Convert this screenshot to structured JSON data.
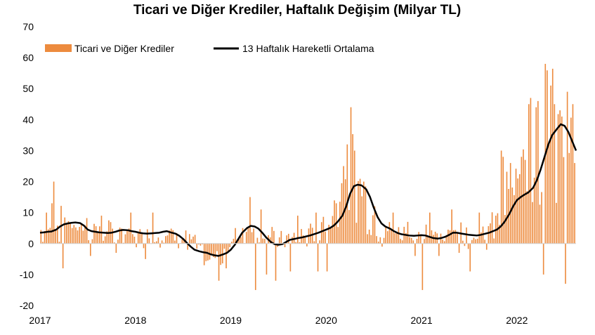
{
  "chart_data": {
    "type": "bar+line",
    "title": "Ticari ve Diğer Krediler, Haftalık Değişim (Milyar TL)",
    "xlabel": "",
    "ylabel": "",
    "ylim": [
      -20,
      70
    ],
    "yticks": [
      -20,
      -10,
      0,
      10,
      20,
      30,
      40,
      50,
      60,
      70
    ],
    "xlim": [
      2017,
      2022.62
    ],
    "xticks": [
      2017,
      2018,
      2019,
      2020,
      2021,
      2022
    ],
    "xtick_labels": [
      "2017",
      "2018",
      "2019",
      "2020",
      "2021",
      "2022"
    ],
    "grid": false,
    "legend_position": "top-left",
    "colors": {
      "bar": "#ed8b3e",
      "line": "#000000"
    },
    "series": [
      {
        "name": "Ticari ve Diğer Krediler",
        "kind": "bar",
        "anchors": [
          [
            2017.0,
            4
          ],
          [
            2017.15,
            5
          ],
          [
            2017.3,
            7
          ],
          [
            2017.45,
            6
          ],
          [
            2017.6,
            4
          ],
          [
            2017.75,
            3
          ],
          [
            2017.9,
            3
          ],
          [
            2018.05,
            2
          ],
          [
            2018.2,
            3
          ],
          [
            2018.35,
            3
          ],
          [
            2018.5,
            2
          ],
          [
            2018.6,
            1
          ],
          [
            2018.7,
            -3
          ],
          [
            2018.8,
            -4
          ],
          [
            2018.9,
            -4
          ],
          [
            2019.0,
            -1
          ],
          [
            2019.1,
            3
          ],
          [
            2019.18,
            6
          ],
          [
            2019.28,
            4
          ],
          [
            2019.4,
            2
          ],
          [
            2019.55,
            1
          ],
          [
            2019.7,
            2
          ],
          [
            2019.85,
            3
          ],
          [
            2019.95,
            5
          ],
          [
            2020.05,
            8
          ],
          [
            2020.15,
            18
          ],
          [
            2020.25,
            25
          ],
          [
            2020.35,
            19
          ],
          [
            2020.45,
            11
          ],
          [
            2020.55,
            6
          ],
          [
            2020.65,
            4
          ],
          [
            2020.8,
            3
          ],
          [
            2020.95,
            4
          ],
          [
            2021.1,
            2
          ],
          [
            2021.2,
            3
          ],
          [
            2021.3,
            5
          ],
          [
            2021.45,
            3
          ],
          [
            2021.55,
            3
          ],
          [
            2021.65,
            3
          ],
          [
            2021.75,
            5
          ],
          [
            2021.82,
            9
          ],
          [
            2021.88,
            14
          ],
          [
            2021.95,
            15
          ],
          [
            2022.02,
            17
          ],
          [
            2022.1,
            22
          ],
          [
            2022.18,
            30
          ],
          [
            2022.26,
            34
          ],
          [
            2022.34,
            38
          ],
          [
            2022.42,
            35
          ],
          [
            2022.5,
            33
          ],
          [
            2022.58,
            30
          ],
          [
            2022.62,
            28
          ]
        ],
        "spikes": [
          [
            2017.06,
            10
          ],
          [
            2017.12,
            13
          ],
          [
            2017.15,
            20
          ],
          [
            2017.24,
            -8
          ],
          [
            2017.33,
            5
          ],
          [
            2017.52,
            -4
          ],
          [
            2017.65,
            9
          ],
          [
            2017.8,
            -3
          ],
          [
            2017.95,
            10
          ],
          [
            2018.1,
            -5
          ],
          [
            2018.18,
            10
          ],
          [
            2018.55,
            -2
          ],
          [
            2018.73,
            -7
          ],
          [
            2018.87,
            -12
          ],
          [
            2018.95,
            -8
          ],
          [
            2019.05,
            5
          ],
          [
            2019.12,
            5
          ],
          [
            2019.2,
            15
          ],
          [
            2019.25,
            -15
          ],
          [
            2019.32,
            11
          ],
          [
            2019.38,
            -10
          ],
          [
            2019.48,
            -12
          ],
          [
            2019.62,
            -9
          ],
          [
            2019.7,
            9
          ],
          [
            2019.9,
            10
          ],
          [
            2019.92,
            -9
          ],
          [
            2020.0,
            -9
          ],
          [
            2020.1,
            13
          ],
          [
            2020.18,
            25
          ],
          [
            2020.22,
            32
          ],
          [
            2020.25,
            44
          ],
          [
            2020.3,
            30
          ],
          [
            2020.4,
            20
          ],
          [
            2020.5,
            12
          ],
          [
            2020.58,
            -1
          ],
          [
            2020.7,
            10
          ],
          [
            2020.85,
            7
          ],
          [
            2020.93,
            -4
          ],
          [
            2021.0,
            -15
          ],
          [
            2021.08,
            10
          ],
          [
            2021.18,
            -4
          ],
          [
            2021.32,
            11
          ],
          [
            2021.4,
            -3
          ],
          [
            2021.5,
            -9
          ],
          [
            2021.6,
            10
          ],
          [
            2021.68,
            -2
          ],
          [
            2021.78,
            9
          ],
          [
            2021.83,
            30
          ],
          [
            2021.86,
            28
          ],
          [
            2021.93,
            26
          ],
          [
            2022.0,
            21
          ],
          [
            2022.04,
            28
          ],
          [
            2022.09,
            27
          ],
          [
            2022.12,
            45
          ],
          [
            2022.15,
            47
          ],
          [
            2022.2,
            44
          ],
          [
            2022.23,
            46
          ],
          [
            2022.27,
            62
          ],
          [
            2022.28,
            -10
          ],
          [
            2022.3,
            58
          ],
          [
            2022.35,
            51
          ],
          [
            2022.4,
            45
          ],
          [
            2022.45,
            43
          ],
          [
            2022.48,
            41
          ],
          [
            2022.5,
            -13
          ],
          [
            2022.53,
            49
          ],
          [
            2022.58,
            45
          ],
          [
            2022.61,
            26
          ]
        ]
      },
      {
        "name": "13 Haftalık Hareketli Ortalama",
        "kind": "line",
        "x": [
          2017.0,
          2017.04,
          2017.08,
          2017.12,
          2017.17,
          2017.21,
          2017.25,
          2017.29,
          2017.33,
          2017.37,
          2017.42,
          2017.46,
          2017.5,
          2017.54,
          2017.58,
          2017.62,
          2017.67,
          2017.71,
          2017.75,
          2017.79,
          2017.83,
          2017.87,
          2017.92,
          2017.96,
          2018.0,
          2018.04,
          2018.08,
          2018.12,
          2018.17,
          2018.21,
          2018.25,
          2018.29,
          2018.33,
          2018.37,
          2018.42,
          2018.46,
          2018.5,
          2018.54,
          2018.58,
          2018.62,
          2018.67,
          2018.71,
          2018.75,
          2018.79,
          2018.83,
          2018.87,
          2018.92,
          2018.96,
          2019.0,
          2019.04,
          2019.08,
          2019.12,
          2019.17,
          2019.21,
          2019.25,
          2019.29,
          2019.33,
          2019.37,
          2019.42,
          2019.46,
          2019.5,
          2019.54,
          2019.58,
          2019.62,
          2019.67,
          2019.71,
          2019.75,
          2019.79,
          2019.83,
          2019.87,
          2019.92,
          2019.96,
          2020.0,
          2020.04,
          2020.08,
          2020.12,
          2020.17,
          2020.21,
          2020.25,
          2020.29,
          2020.33,
          2020.37,
          2020.42,
          2020.46,
          2020.5,
          2020.54,
          2020.58,
          2020.62,
          2020.67,
          2020.71,
          2020.75,
          2020.79,
          2020.83,
          2020.87,
          2020.92,
          2020.96,
          2021.0,
          2021.04,
          2021.08,
          2021.12,
          2021.17,
          2021.21,
          2021.25,
          2021.29,
          2021.33,
          2021.37,
          2021.42,
          2021.46,
          2021.5,
          2021.54,
          2021.58,
          2021.62,
          2021.67,
          2021.71,
          2021.75,
          2021.79,
          2021.83,
          2021.87,
          2021.92,
          2021.96,
          2022.0,
          2022.04,
          2022.08,
          2022.12,
          2022.17,
          2022.21,
          2022.25,
          2022.29,
          2022.33,
          2022.37,
          2022.42,
          2022.46,
          2022.5,
          2022.54,
          2022.58,
          2022.62
        ],
        "values": [
          3.5,
          3.6,
          3.8,
          3.9,
          4.5,
          5.5,
          6.2,
          6.5,
          6.7,
          6.8,
          6.6,
          5.8,
          4.5,
          4.0,
          3.8,
          3.6,
          3.5,
          3.4,
          3.5,
          3.8,
          4.2,
          4.4,
          4.3,
          4.0,
          3.8,
          3.5,
          3.3,
          3.2,
          3.3,
          3.4,
          3.5,
          3.8,
          4.0,
          3.6,
          3.2,
          2.5,
          1.5,
          0.2,
          -1.0,
          -2.0,
          -2.5,
          -2.8,
          -3.0,
          -3.5,
          -3.8,
          -4.0,
          -3.5,
          -3.0,
          -2.0,
          -0.5,
          1.5,
          3.5,
          5.0,
          5.7,
          5.5,
          4.8,
          3.5,
          2.0,
          0.5,
          -0.2,
          -0.4,
          -0.2,
          0.5,
          1.2,
          1.5,
          1.8,
          2.0,
          2.3,
          2.6,
          3.0,
          3.5,
          4.0,
          4.5,
          5.0,
          5.8,
          7.0,
          9.0,
          12.0,
          16.0,
          18.5,
          19.0,
          18.8,
          17.5,
          15.0,
          11.5,
          8.5,
          6.5,
          5.5,
          4.8,
          4.0,
          3.4,
          3.0,
          2.8,
          2.6,
          2.5,
          2.6,
          2.7,
          2.6,
          2.2,
          1.8,
          1.6,
          1.8,
          2.2,
          2.8,
          3.5,
          3.5,
          3.2,
          3.0,
          2.8,
          2.7,
          2.6,
          2.8,
          3.2,
          3.5,
          4.0,
          4.5,
          5.5,
          7.0,
          9.5,
          12.0,
          14.0,
          15.0,
          15.8,
          16.5,
          18.0,
          20.5,
          24.0,
          28.0,
          32.0,
          35.0,
          37.0,
          38.5,
          38.0,
          36.0,
          33.0,
          30.0
        ]
      }
    ]
  }
}
